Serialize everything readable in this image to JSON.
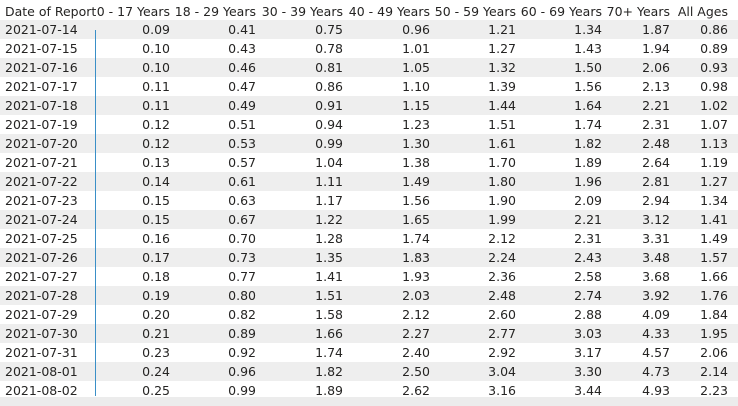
{
  "table": {
    "columns": [
      "Date of Report",
      "0 - 17 Years",
      "18 - 29 Years",
      "30 - 39 Years",
      "40 - 49 Years",
      "50 - 59 Years",
      "60 - 69 Years",
      "70+ Years",
      "All Ages"
    ],
    "rows": [
      [
        "2021-07-14",
        "0.09",
        "0.41",
        "0.75",
        "0.96",
        "1.21",
        "1.34",
        "1.87",
        "0.86"
      ],
      [
        "2021-07-15",
        "0.10",
        "0.43",
        "0.78",
        "1.01",
        "1.27",
        "1.43",
        "1.94",
        "0.89"
      ],
      [
        "2021-07-16",
        "0.10",
        "0.46",
        "0.81",
        "1.05",
        "1.32",
        "1.50",
        "2.06",
        "0.93"
      ],
      [
        "2021-07-17",
        "0.11",
        "0.47",
        "0.86",
        "1.10",
        "1.39",
        "1.56",
        "2.13",
        "0.98"
      ],
      [
        "2021-07-18",
        "0.11",
        "0.49",
        "0.91",
        "1.15",
        "1.44",
        "1.64",
        "2.21",
        "1.02"
      ],
      [
        "2021-07-19",
        "0.12",
        "0.51",
        "0.94",
        "1.23",
        "1.51",
        "1.74",
        "2.31",
        "1.07"
      ],
      [
        "2021-07-20",
        "0.12",
        "0.53",
        "0.99",
        "1.30",
        "1.61",
        "1.82",
        "2.48",
        "1.13"
      ],
      [
        "2021-07-21",
        "0.13",
        "0.57",
        "1.04",
        "1.38",
        "1.70",
        "1.89",
        "2.64",
        "1.19"
      ],
      [
        "2021-07-22",
        "0.14",
        "0.61",
        "1.11",
        "1.49",
        "1.80",
        "1.96",
        "2.81",
        "1.27"
      ],
      [
        "2021-07-23",
        "0.15",
        "0.63",
        "1.17",
        "1.56",
        "1.90",
        "2.09",
        "2.94",
        "1.34"
      ],
      [
        "2021-07-24",
        "0.15",
        "0.67",
        "1.22",
        "1.65",
        "1.99",
        "2.21",
        "3.12",
        "1.41"
      ],
      [
        "2021-07-25",
        "0.16",
        "0.70",
        "1.28",
        "1.74",
        "2.12",
        "2.31",
        "3.31",
        "1.49"
      ],
      [
        "2021-07-26",
        "0.17",
        "0.73",
        "1.35",
        "1.83",
        "2.24",
        "2.43",
        "3.48",
        "1.57"
      ],
      [
        "2021-07-27",
        "0.18",
        "0.77",
        "1.41",
        "1.93",
        "2.36",
        "2.58",
        "3.68",
        "1.66"
      ],
      [
        "2021-07-28",
        "0.19",
        "0.80",
        "1.51",
        "2.03",
        "2.48",
        "2.74",
        "3.92",
        "1.76"
      ],
      [
        "2021-07-29",
        "0.20",
        "0.82",
        "1.58",
        "2.12",
        "2.60",
        "2.88",
        "4.09",
        "1.84"
      ],
      [
        "2021-07-30",
        "0.21",
        "0.89",
        "1.66",
        "2.27",
        "2.77",
        "3.03",
        "4.33",
        "1.95"
      ],
      [
        "2021-07-31",
        "0.23",
        "0.92",
        "1.74",
        "2.40",
        "2.92",
        "3.17",
        "4.57",
        "2.06"
      ],
      [
        "2021-08-01",
        "0.24",
        "0.96",
        "1.82",
        "2.50",
        "3.04",
        "3.30",
        "4.73",
        "2.14"
      ],
      [
        "2021-08-02",
        "0.25",
        "0.99",
        "1.89",
        "2.62",
        "3.16",
        "3.44",
        "4.93",
        "2.23"
      ]
    ]
  }
}
